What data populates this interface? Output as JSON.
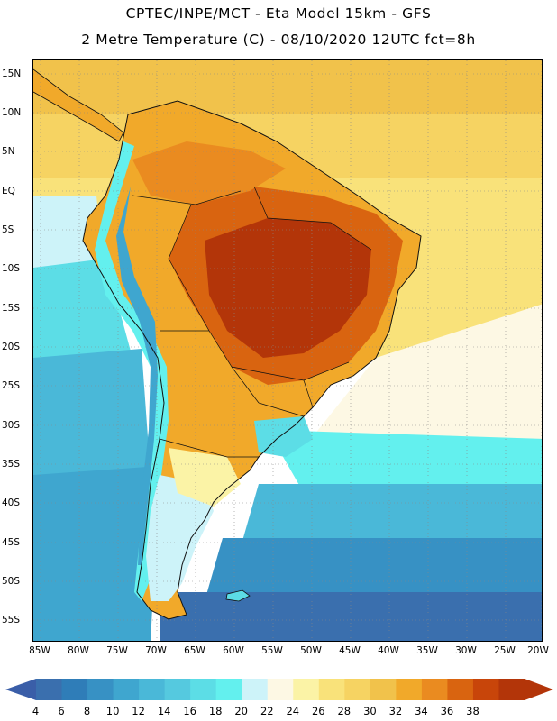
{
  "title_line1": "CPTEC/INPE/MCT -  Eta Model 15km - GFS",
  "title_line2": "2 Metre Temperature (C) - 08/10/2020 12UTC fct=8h",
  "lat_ticks": [
    "15N",
    "10N",
    "5N",
    "EQ",
    "5S",
    "10S",
    "15S",
    "20S",
    "25S",
    "30S",
    "35S",
    "40S",
    "45S",
    "50S",
    "55S"
  ],
  "lon_ticks": [
    "85W",
    "80W",
    "75W",
    "70W",
    "65W",
    "60W",
    "55W",
    "50W",
    "45W",
    "40W",
    "35W",
    "30W",
    "25W",
    "20W"
  ],
  "colorbar": {
    "labels": [
      "4",
      "6",
      "8",
      "10",
      "12",
      "14",
      "16",
      "18",
      "20",
      "22",
      "24",
      "26",
      "28",
      "30",
      "32",
      "34",
      "36",
      "38"
    ],
    "colors": [
      "#3a6fae",
      "#2f7db8",
      "#3791c4",
      "#3fa6cf",
      "#4ab8d8",
      "#55c9df",
      "#5cdde6",
      "#63f0ee",
      "#cdf3f9",
      "#fdf8e4",
      "#fbf3a6",
      "#f9e27a",
      "#f6d362",
      "#f1c24b",
      "#f1a92a",
      "#ea8b20",
      "#d96410",
      "#c8450a",
      "#b33509"
    ],
    "under_color": "#3a5ea8",
    "over_color": "#b33509"
  }
}
